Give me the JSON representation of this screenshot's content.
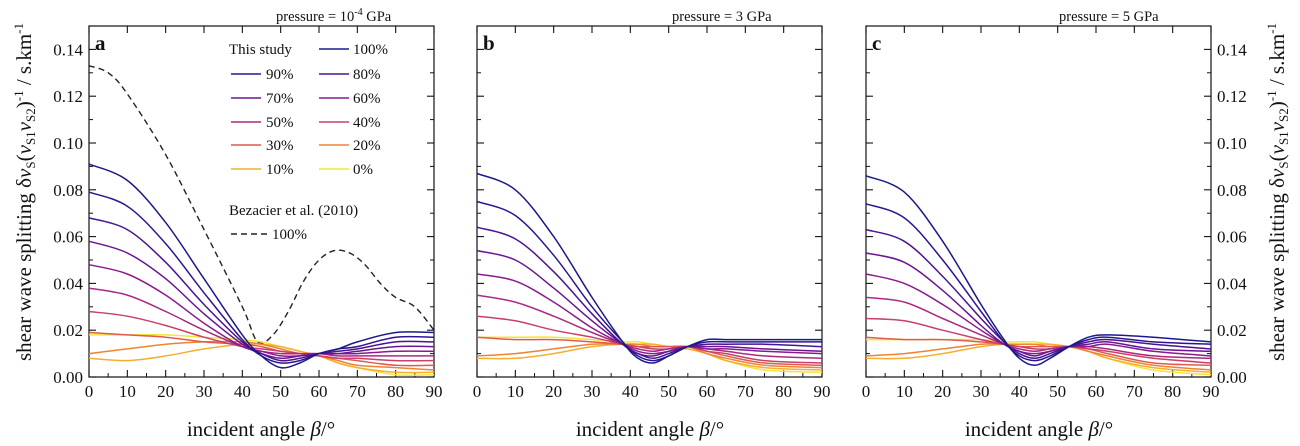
{
  "chart_data": [
    {
      "type": "line",
      "panel_label": "a",
      "title_text": "pressure = 10",
      "title_exponent": "-4",
      "title_unit": " GPa",
      "xlabel_text": "incident angle ",
      "xlabel_symbol": "β",
      "xlabel_unit": "/°",
      "ylabel_text": "shear wave splitting δ",
      "ylabel_v": "v",
      "ylabel_sub_S": "S",
      "ylabel_paren_open": "(",
      "ylabel_v1": "v",
      "ylabel_sub_S1": "S1",
      "ylabel_v2": "v",
      "ylabel_sub_S2": "S2",
      "ylabel_paren_close": ")",
      "ylabel_exp": "-1",
      "ylabel_unit": " / s.km",
      "ylabel_unit_exp": "-1",
      "xlim": [
        0,
        90
      ],
      "ylim": [
        0,
        0.15
      ],
      "xticks": [
        "0",
        "10",
        "20",
        "30",
        "40",
        "50",
        "60",
        "70",
        "80",
        "90"
      ],
      "yticks": [
        "0.00",
        "0.02",
        "0.04",
        "0.06",
        "0.08",
        "0.10",
        "0.12",
        "0.14"
      ],
      "y_tick_side": "left",
      "grid": false,
      "x": [
        0,
        10,
        20,
        30,
        40,
        45,
        50,
        55,
        60,
        65,
        70,
        80,
        90
      ],
      "series": [
        {
          "name": "100%",
          "color": "#1a1a8c",
          "values": [
            0.091,
            0.084,
            0.066,
            0.042,
            0.018,
            0.009,
            0.004,
            0.006,
            0.01,
            0.012,
            0.015,
            0.019,
            0.019
          ]
        },
        {
          "name": "90%",
          "color": "#2e158f",
          "values": [
            0.079,
            0.073,
            0.057,
            0.036,
            0.016,
            0.009,
            0.006,
            0.007,
            0.01,
            0.012,
            0.013,
            0.017,
            0.017
          ]
        },
        {
          "name": "80%",
          "color": "#4a1491",
          "values": [
            0.068,
            0.063,
            0.049,
            0.031,
            0.015,
            0.01,
            0.007,
            0.008,
            0.01,
            0.011,
            0.012,
            0.015,
            0.015
          ]
        },
        {
          "name": "70%",
          "color": "#6a1592",
          "values": [
            0.058,
            0.053,
            0.042,
            0.027,
            0.014,
            0.01,
            0.008,
            0.009,
            0.01,
            0.01,
            0.011,
            0.013,
            0.013
          ]
        },
        {
          "name": "60%",
          "color": "#8a1b8e",
          "values": [
            0.048,
            0.044,
            0.035,
            0.023,
            0.013,
            0.011,
            0.009,
            0.009,
            0.01,
            0.01,
            0.01,
            0.011,
            0.011
          ]
        },
        {
          "name": "50%",
          "color": "#aa2a7f",
          "values": [
            0.038,
            0.035,
            0.028,
            0.02,
            0.013,
            0.011,
            0.01,
            0.01,
            0.01,
            0.009,
            0.009,
            0.009,
            0.009
          ]
        },
        {
          "name": "40%",
          "color": "#c8406b",
          "values": [
            0.028,
            0.026,
            0.022,
            0.017,
            0.013,
            0.012,
            0.011,
            0.01,
            0.009,
            0.008,
            0.008,
            0.007,
            0.007
          ]
        },
        {
          "name": "30%",
          "color": "#de5c4f",
          "values": [
            0.019,
            0.018,
            0.017,
            0.015,
            0.014,
            0.013,
            0.011,
            0.01,
            0.009,
            0.008,
            0.007,
            0.005,
            0.005
          ]
        },
        {
          "name": "20%",
          "color": "#ee8336",
          "values": [
            0.01,
            0.012,
            0.014,
            0.015,
            0.015,
            0.014,
            0.012,
            0.01,
            0.009,
            0.007,
            0.005,
            0.004,
            0.003
          ]
        },
        {
          "name": "10%",
          "color": "#f6ad30",
          "values": [
            0.008,
            0.007,
            0.009,
            0.012,
            0.014,
            0.014,
            0.013,
            0.011,
            0.009,
            0.006,
            0.004,
            0.002,
            0.002
          ]
        },
        {
          "name": "0%",
          "color": "#f2e53a",
          "values": [
            0.018,
            0.018,
            0.018,
            0.017,
            0.016,
            0.015,
            0.013,
            0.011,
            0.009,
            0.006,
            0.004,
            0.001,
            0.001
          ]
        }
      ],
      "reference_series": {
        "name": "100%",
        "color": "#222222",
        "dashed": true,
        "x": [
          0,
          5,
          10,
          20,
          30,
          40,
          44,
          48,
          52,
          56,
          60,
          64,
          68,
          72,
          76,
          80,
          85,
          90
        ],
        "values": [
          0.133,
          0.13,
          0.121,
          0.095,
          0.063,
          0.03,
          0.015,
          0.018,
          0.028,
          0.041,
          0.05,
          0.054,
          0.053,
          0.048,
          0.04,
          0.034,
          0.03,
          0.02
        ]
      },
      "legend": {
        "position": "top-center",
        "header": "This study",
        "reference_header": "Bezacier et al. (2010)",
        "reference_label": "100%"
      }
    },
    {
      "type": "line",
      "panel_label": "b",
      "title_text": "pressure = 3 GPa",
      "xlabel_text": "incident angle ",
      "xlabel_symbol": "β",
      "xlabel_unit": "/°",
      "xlim": [
        0,
        90
      ],
      "ylim": [
        0,
        0.15
      ],
      "xticks": [
        "0",
        "10",
        "20",
        "30",
        "40",
        "50",
        "60",
        "70",
        "80",
        "90"
      ],
      "y_tick_side": "none",
      "grid": false,
      "x": [
        0,
        10,
        20,
        30,
        38,
        42,
        46,
        50,
        55,
        60,
        65,
        75,
        90
      ],
      "series": [
        {
          "color": "#1a1a8c",
          "values": [
            0.087,
            0.08,
            0.06,
            0.034,
            0.015,
            0.008,
            0.006,
            0.009,
            0.013,
            0.016,
            0.016,
            0.016,
            0.016
          ]
        },
        {
          "color": "#2e158f",
          "values": [
            0.075,
            0.069,
            0.052,
            0.03,
            0.015,
            0.009,
            0.007,
            0.009,
            0.013,
            0.015,
            0.015,
            0.015,
            0.015
          ]
        },
        {
          "color": "#4a1491",
          "values": [
            0.064,
            0.059,
            0.045,
            0.027,
            0.014,
            0.01,
            0.008,
            0.01,
            0.013,
            0.014,
            0.014,
            0.014,
            0.013
          ]
        },
        {
          "color": "#6a1592",
          "values": [
            0.054,
            0.05,
            0.038,
            0.024,
            0.014,
            0.01,
            0.009,
            0.011,
            0.013,
            0.013,
            0.013,
            0.012,
            0.011
          ]
        },
        {
          "color": "#8a1b8e",
          "values": [
            0.044,
            0.041,
            0.032,
            0.021,
            0.014,
            0.011,
            0.01,
            0.011,
            0.013,
            0.012,
            0.012,
            0.011,
            0.01
          ]
        },
        {
          "color": "#aa2a7f",
          "values": [
            0.035,
            0.032,
            0.026,
            0.019,
            0.014,
            0.012,
            0.011,
            0.012,
            0.013,
            0.012,
            0.011,
            0.009,
            0.008
          ]
        },
        {
          "color": "#c8406b",
          "values": [
            0.026,
            0.024,
            0.02,
            0.017,
            0.014,
            0.013,
            0.012,
            0.012,
            0.013,
            0.011,
            0.01,
            0.007,
            0.006
          ]
        },
        {
          "color": "#de5c4f",
          "values": [
            0.017,
            0.016,
            0.016,
            0.015,
            0.014,
            0.013,
            0.013,
            0.013,
            0.013,
            0.011,
            0.009,
            0.006,
            0.005
          ]
        },
        {
          "color": "#ee8336",
          "values": [
            0.009,
            0.01,
            0.012,
            0.014,
            0.014,
            0.014,
            0.013,
            0.013,
            0.013,
            0.01,
            0.008,
            0.005,
            0.004
          ]
        },
        {
          "color": "#f6ad30",
          "values": [
            0.008,
            0.008,
            0.01,
            0.013,
            0.014,
            0.014,
            0.014,
            0.013,
            0.012,
            0.01,
            0.007,
            0.004,
            0.003
          ]
        },
        {
          "color": "#f2e53a",
          "values": [
            0.017,
            0.017,
            0.017,
            0.016,
            0.015,
            0.015,
            0.014,
            0.013,
            0.012,
            0.01,
            0.007,
            0.003,
            0.002
          ]
        }
      ]
    },
    {
      "type": "line",
      "panel_label": "c",
      "title_text": "pressure = 5 GPa",
      "xlabel_text": "incident angle ",
      "xlabel_symbol": "β",
      "xlabel_unit": "/°",
      "ylabel_text": "shear wave splitting δ",
      "ylabel_v": "v",
      "ylabel_sub_S": "S",
      "ylabel_paren_open": "(",
      "ylabel_v1": "v",
      "ylabel_sub_S1": "S1",
      "ylabel_v2": "v",
      "ylabel_sub_S2": "S2",
      "ylabel_paren_close": ")",
      "ylabel_exp": "-1",
      "ylabel_unit": " / s.km",
      "ylabel_unit_exp": "-1",
      "xlim": [
        0,
        90
      ],
      "ylim": [
        0,
        0.15
      ],
      "xticks": [
        "0",
        "10",
        "20",
        "30",
        "40",
        "50",
        "60",
        "70",
        "80",
        "90"
      ],
      "yticks": [
        "0.00",
        "0.02",
        "0.04",
        "0.06",
        "0.08",
        "0.10",
        "0.12",
        "0.14"
      ],
      "y_tick_side": "right",
      "grid": false,
      "x": [
        0,
        10,
        20,
        30,
        36,
        40,
        44,
        48,
        53,
        58,
        63,
        75,
        90
      ],
      "series": [
        {
          "color": "#1a1a8c",
          "values": [
            0.086,
            0.079,
            0.058,
            0.031,
            0.016,
            0.008,
            0.005,
            0.008,
            0.013,
            0.017,
            0.018,
            0.017,
            0.015
          ]
        },
        {
          "color": "#2e158f",
          "values": [
            0.074,
            0.068,
            0.05,
            0.028,
            0.015,
            0.009,
            0.007,
            0.009,
            0.013,
            0.016,
            0.017,
            0.015,
            0.014
          ]
        },
        {
          "color": "#4a1491",
          "values": [
            0.063,
            0.058,
            0.043,
            0.025,
            0.015,
            0.01,
            0.008,
            0.01,
            0.013,
            0.015,
            0.016,
            0.014,
            0.012
          ]
        },
        {
          "color": "#6a1592",
          "values": [
            0.053,
            0.049,
            0.037,
            0.022,
            0.014,
            0.011,
            0.009,
            0.011,
            0.013,
            0.014,
            0.015,
            0.012,
            0.011
          ]
        },
        {
          "color": "#8a1b8e",
          "values": [
            0.044,
            0.04,
            0.031,
            0.02,
            0.014,
            0.011,
            0.01,
            0.011,
            0.013,
            0.013,
            0.014,
            0.011,
            0.009
          ]
        },
        {
          "color": "#aa2a7f",
          "values": [
            0.034,
            0.032,
            0.025,
            0.018,
            0.014,
            0.012,
            0.011,
            0.012,
            0.013,
            0.013,
            0.012,
            0.009,
            0.008
          ]
        },
        {
          "color": "#c8406b",
          "values": [
            0.025,
            0.024,
            0.02,
            0.016,
            0.014,
            0.013,
            0.012,
            0.012,
            0.013,
            0.012,
            0.011,
            0.008,
            0.006
          ]
        },
        {
          "color": "#de5c4f",
          "values": [
            0.017,
            0.016,
            0.016,
            0.015,
            0.014,
            0.013,
            0.013,
            0.013,
            0.013,
            0.012,
            0.01,
            0.006,
            0.005
          ]
        },
        {
          "color": "#ee8336",
          "values": [
            0.009,
            0.01,
            0.012,
            0.014,
            0.014,
            0.014,
            0.014,
            0.013,
            0.013,
            0.011,
            0.009,
            0.005,
            0.003
          ]
        },
        {
          "color": "#f6ad30",
          "values": [
            0.008,
            0.008,
            0.01,
            0.013,
            0.014,
            0.014,
            0.014,
            0.014,
            0.013,
            0.011,
            0.008,
            0.004,
            0.002
          ]
        },
        {
          "color": "#f2e53a",
          "values": [
            0.016,
            0.016,
            0.016,
            0.016,
            0.015,
            0.015,
            0.015,
            0.014,
            0.013,
            0.011,
            0.008,
            0.003,
            0.001
          ]
        }
      ]
    }
  ]
}
